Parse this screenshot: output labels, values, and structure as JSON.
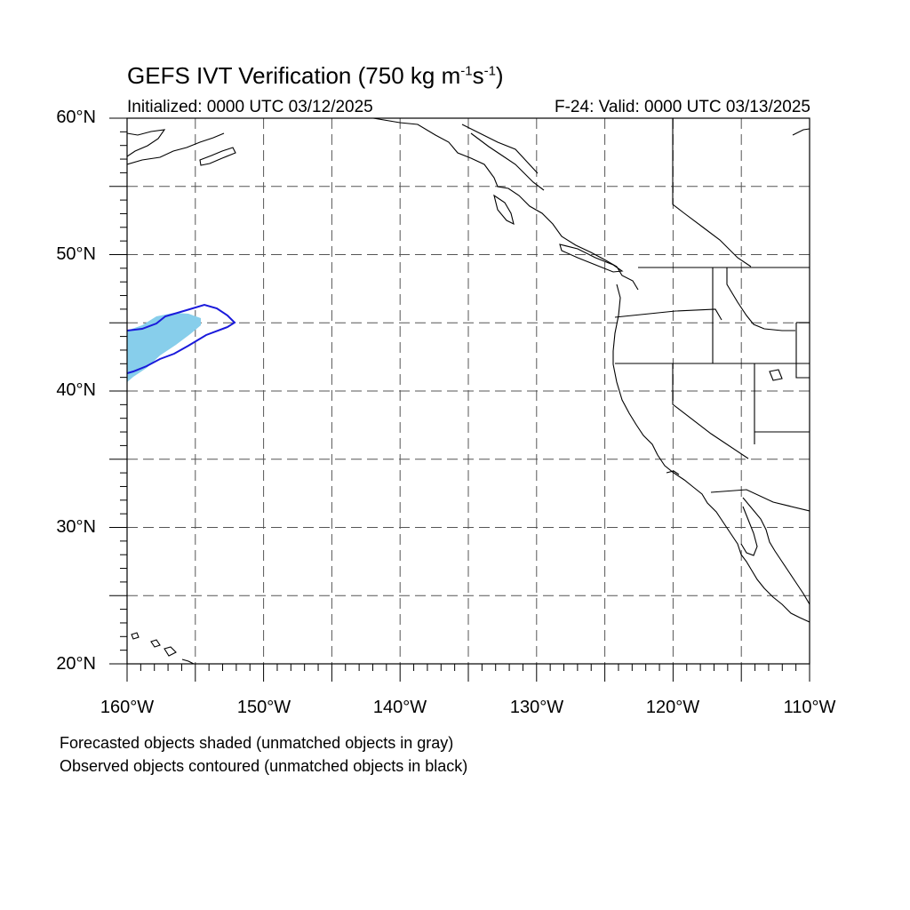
{
  "title": {
    "main": "GEFS IVT Verification (750 kg m",
    "sup1": "-1",
    "mid": "s",
    "sup2": "-1",
    "end": ")"
  },
  "subtitle_left": "Initialized: 0000 UTC 03/12/2025",
  "subtitle_right": "F-24: Valid: 0000 UTC 03/13/2025",
  "lat_labels": [
    "60°N",
    "50°N",
    "40°N",
    "30°N",
    "20°N"
  ],
  "lon_labels": [
    "160°W",
    "150°W",
    "140°W",
    "130°W",
    "120°W",
    "110°W"
  ],
  "notes": [
    "Forecasted objects shaded (unmatched objects in gray)",
    "Observed objects contoured (unmatched objects in black)"
  ],
  "map": {
    "lon_range": [
      -160,
      -110
    ],
    "lat_range": [
      20,
      60
    ],
    "grid_step_deg": 5,
    "grid": "dashed",
    "forecast_fill_color": "#87ceeb",
    "observed_contour_color": "#1a1adb"
  }
}
